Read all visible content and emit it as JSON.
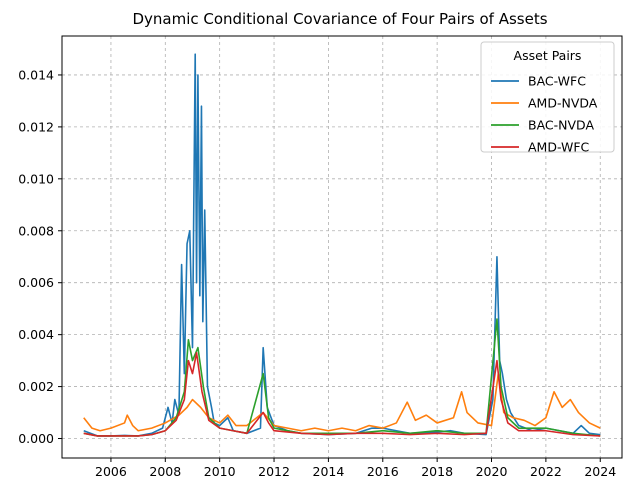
{
  "chart_data": {
    "type": "line",
    "title": "Dynamic Conditional Covariance of Four Pairs of Assets",
    "xlabel": "",
    "ylabel": "",
    "xlim": [
      2004.2,
      2024.8
    ],
    "ylim": [
      -0.00075,
      0.0155
    ],
    "x_ticks": [
      2006,
      2008,
      2010,
      2012,
      2014,
      2016,
      2018,
      2020,
      2022,
      2024
    ],
    "x_tick_labels": [
      "2006",
      "2008",
      "2010",
      "2012",
      "2014",
      "2016",
      "2018",
      "2020",
      "2022",
      "2024"
    ],
    "y_ticks": [
      0.0,
      0.002,
      0.004,
      0.006,
      0.008,
      0.01,
      0.012,
      0.014
    ],
    "y_tick_labels": [
      "0.000",
      "0.002",
      "0.004",
      "0.006",
      "0.008",
      "0.010",
      "0.012",
      "0.014"
    ],
    "grid": true,
    "legend": {
      "title": "Asset Pairs",
      "position": "top-right"
    },
    "series": [
      {
        "name": "BAC-WFC",
        "color": "#1f77b4",
        "points": [
          [
            2005.0,
            0.0003
          ],
          [
            2005.5,
            0.0001
          ],
          [
            2006.0,
            0.0001
          ],
          [
            2006.5,
            0.00012
          ],
          [
            2007.0,
            0.0001
          ],
          [
            2007.5,
            0.0002
          ],
          [
            2007.9,
            0.0004
          ],
          [
            2008.1,
            0.0012
          ],
          [
            2008.25,
            0.0006
          ],
          [
            2008.35,
            0.0015
          ],
          [
            2008.5,
            0.0009
          ],
          [
            2008.6,
            0.0067
          ],
          [
            2008.7,
            0.0025
          ],
          [
            2008.8,
            0.0075
          ],
          [
            2008.9,
            0.008
          ],
          [
            2009.0,
            0.0035
          ],
          [
            2009.1,
            0.0148
          ],
          [
            2009.15,
            0.006
          ],
          [
            2009.2,
            0.014
          ],
          [
            2009.27,
            0.0055
          ],
          [
            2009.33,
            0.0128
          ],
          [
            2009.38,
            0.0045
          ],
          [
            2009.45,
            0.0088
          ],
          [
            2009.55,
            0.002
          ],
          [
            2009.7,
            0.0012
          ],
          [
            2009.8,
            0.0006
          ],
          [
            2010.0,
            0.0005
          ],
          [
            2010.3,
            0.0008
          ],
          [
            2010.5,
            0.0003
          ],
          [
            2011.0,
            0.0002
          ],
          [
            2011.5,
            0.0004
          ],
          [
            2011.6,
            0.0035
          ],
          [
            2011.75,
            0.0012
          ],
          [
            2012.0,
            0.0005
          ],
          [
            2012.5,
            0.0003
          ],
          [
            2013.0,
            0.0002
          ],
          [
            2014.0,
            0.00015
          ],
          [
            2015.0,
            0.0002
          ],
          [
            2015.6,
            0.0004
          ],
          [
            2016.0,
            0.0004
          ],
          [
            2016.5,
            0.0003
          ],
          [
            2017.0,
            0.0002
          ],
          [
            2018.0,
            0.00025
          ],
          [
            2018.5,
            0.0003
          ],
          [
            2019.0,
            0.0002
          ],
          [
            2019.8,
            0.00015
          ],
          [
            2020.05,
            0.0015
          ],
          [
            2020.2,
            0.007
          ],
          [
            2020.3,
            0.003
          ],
          [
            2020.4,
            0.0025
          ],
          [
            2020.55,
            0.0015
          ],
          [
            2020.7,
            0.001
          ],
          [
            2021.0,
            0.0005
          ],
          [
            2021.5,
            0.0003
          ],
          [
            2022.0,
            0.0004
          ],
          [
            2022.5,
            0.0003
          ],
          [
            2023.0,
            0.0002
          ],
          [
            2023.3,
            0.0005
          ],
          [
            2023.6,
            0.0002
          ],
          [
            2024.0,
            0.00015
          ]
        ]
      },
      {
        "name": "AMD-NVDA",
        "color": "#ff7f0e",
        "points": [
          [
            2005.0,
            0.0008
          ],
          [
            2005.3,
            0.0004
          ],
          [
            2005.6,
            0.0003
          ],
          [
            2006.0,
            0.0004
          ],
          [
            2006.5,
            0.0006
          ],
          [
            2006.6,
            0.0009
          ],
          [
            2006.8,
            0.0005
          ],
          [
            2007.0,
            0.0003
          ],
          [
            2007.5,
            0.0004
          ],
          [
            2008.0,
            0.0006
          ],
          [
            2008.5,
            0.0009
          ],
          [
            2008.8,
            0.0012
          ],
          [
            2009.0,
            0.0015
          ],
          [
            2009.3,
            0.0012
          ],
          [
            2009.6,
            0.0008
          ],
          [
            2010.0,
            0.0006
          ],
          [
            2010.3,
            0.0009
          ],
          [
            2010.6,
            0.0005
          ],
          [
            2011.0,
            0.0005
          ],
          [
            2011.6,
            0.001
          ],
          [
            2012.0,
            0.0005
          ],
          [
            2012.5,
            0.0004
          ],
          [
            2013.0,
            0.0003
          ],
          [
            2013.5,
            0.0004
          ],
          [
            2014.0,
            0.0003
          ],
          [
            2014.5,
            0.0004
          ],
          [
            2015.0,
            0.0003
          ],
          [
            2015.5,
            0.0005
          ],
          [
            2016.0,
            0.0004
          ],
          [
            2016.5,
            0.0006
          ],
          [
            2016.9,
            0.0014
          ],
          [
            2017.2,
            0.0007
          ],
          [
            2017.6,
            0.0009
          ],
          [
            2018.0,
            0.0006
          ],
          [
            2018.6,
            0.0008
          ],
          [
            2018.9,
            0.0018
          ],
          [
            2019.1,
            0.001
          ],
          [
            2019.5,
            0.0006
          ],
          [
            2020.0,
            0.0005
          ],
          [
            2020.25,
            0.0025
          ],
          [
            2020.45,
            0.001
          ],
          [
            2020.8,
            0.0008
          ],
          [
            2021.2,
            0.0007
          ],
          [
            2021.6,
            0.0005
          ],
          [
            2022.0,
            0.0008
          ],
          [
            2022.3,
            0.0018
          ],
          [
            2022.6,
            0.0012
          ],
          [
            2022.9,
            0.0015
          ],
          [
            2023.2,
            0.001
          ],
          [
            2023.6,
            0.0006
          ],
          [
            2024.0,
            0.0004
          ]
        ]
      },
      {
        "name": "BAC-NVDA",
        "color": "#2ca02c",
        "points": [
          [
            2005.0,
            0.0002
          ],
          [
            2005.5,
            0.0001
          ],
          [
            2006.0,
            0.0001
          ],
          [
            2007.0,
            0.0001
          ],
          [
            2007.5,
            0.00015
          ],
          [
            2008.0,
            0.0003
          ],
          [
            2008.4,
            0.0008
          ],
          [
            2008.7,
            0.0018
          ],
          [
            2008.85,
            0.0038
          ],
          [
            2009.0,
            0.003
          ],
          [
            2009.2,
            0.0035
          ],
          [
            2009.4,
            0.002
          ],
          [
            2009.6,
            0.0008
          ],
          [
            2010.0,
            0.0004
          ],
          [
            2010.5,
            0.0003
          ],
          [
            2011.0,
            0.0002
          ],
          [
            2011.6,
            0.0025
          ],
          [
            2011.8,
            0.0008
          ],
          [
            2012.0,
            0.0004
          ],
          [
            2013.0,
            0.0002
          ],
          [
            2014.0,
            0.0002
          ],
          [
            2015.0,
            0.0002
          ],
          [
            2016.0,
            0.0003
          ],
          [
            2017.0,
            0.0002
          ],
          [
            2018.0,
            0.0003
          ],
          [
            2019.0,
            0.0002
          ],
          [
            2019.8,
            0.0002
          ],
          [
            2020.2,
            0.0046
          ],
          [
            2020.35,
            0.002
          ],
          [
            2020.6,
            0.0008
          ],
          [
            2021.0,
            0.0004
          ],
          [
            2022.0,
            0.0004
          ],
          [
            2023.0,
            0.0002
          ],
          [
            2024.0,
            0.0001
          ]
        ]
      },
      {
        "name": "AMD-WFC",
        "color": "#d62728",
        "points": [
          [
            2005.0,
            0.0002
          ],
          [
            2005.5,
            0.0001
          ],
          [
            2006.0,
            0.0001
          ],
          [
            2007.0,
            0.0001
          ],
          [
            2007.5,
            0.00015
          ],
          [
            2008.0,
            0.0003
          ],
          [
            2008.4,
            0.0007
          ],
          [
            2008.7,
            0.0015
          ],
          [
            2008.85,
            0.003
          ],
          [
            2009.0,
            0.0025
          ],
          [
            2009.15,
            0.0033
          ],
          [
            2009.35,
            0.0018
          ],
          [
            2009.6,
            0.0007
          ],
          [
            2010.0,
            0.0004
          ],
          [
            2010.5,
            0.0003
          ],
          [
            2011.0,
            0.0002
          ],
          [
            2011.6,
            0.001
          ],
          [
            2011.8,
            0.0006
          ],
          [
            2012.0,
            0.0003
          ],
          [
            2013.0,
            0.0002
          ],
          [
            2014.0,
            0.00015
          ],
          [
            2015.0,
            0.0002
          ],
          [
            2016.0,
            0.0002
          ],
          [
            2017.0,
            0.00015
          ],
          [
            2018.0,
            0.0002
          ],
          [
            2019.0,
            0.00015
          ],
          [
            2019.8,
            0.0002
          ],
          [
            2020.2,
            0.003
          ],
          [
            2020.35,
            0.0015
          ],
          [
            2020.6,
            0.0006
          ],
          [
            2021.0,
            0.0003
          ],
          [
            2022.0,
            0.0003
          ],
          [
            2023.0,
            0.00015
          ],
          [
            2024.0,
            0.0001
          ]
        ]
      }
    ]
  }
}
